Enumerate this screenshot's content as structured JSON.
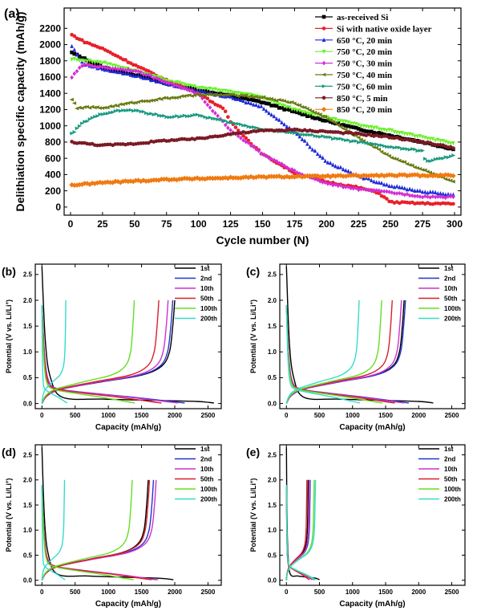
{
  "chart_data": [
    {
      "panel": "(a)",
      "type": "scatter",
      "xlabel": "Cycle number (N)",
      "ylabel": "Delithiation specific capacity (mAh/g)",
      "xlim": [
        -5,
        305
      ],
      "ylim": [
        -100,
        2450
      ],
      "xticks": [
        0,
        25,
        50,
        75,
        100,
        125,
        150,
        175,
        200,
        225,
        250,
        275,
        300
      ],
      "yticks": [
        0,
        200,
        400,
        600,
        800,
        1000,
        1200,
        1400,
        1600,
        1800,
        2000,
        2200
      ],
      "legend_position": "top-right",
      "series": [
        {
          "name": "as-received Si",
          "color": "#000000",
          "marker": "square",
          "points": [
            [
              1,
              1900
            ],
            [
              25,
              1720
            ],
            [
              50,
              1630
            ],
            [
              75,
              1520
            ],
            [
              100,
              1440
            ],
            [
              125,
              1370
            ],
            [
              150,
              1290
            ],
            [
              175,
              1170
            ],
            [
              200,
              1060
            ],
            [
              225,
              960
            ],
            [
              250,
              880
            ],
            [
              275,
              800
            ],
            [
              300,
              710
            ]
          ]
        },
        {
          "name": "Si with native oxide layer",
          "color": "#e8202a",
          "marker": "circle",
          "points": [
            [
              1,
              2120
            ],
            [
              10,
              2040
            ],
            [
              25,
              1950
            ],
            [
              50,
              1750
            ],
            [
              75,
              1560
            ],
            [
              100,
              1400
            ],
            [
              120,
              1200
            ],
            [
              125,
              1050
            ],
            [
              140,
              800
            ],
            [
              150,
              650
            ],
            [
              175,
              420
            ],
            [
              200,
              310
            ],
            [
              225,
              240
            ],
            [
              240,
              180
            ],
            [
              250,
              60
            ],
            [
              275,
              45
            ],
            [
              300,
              40
            ]
          ]
        },
        {
          "name": "650 °C, 20 min",
          "color": "#1f2bd6",
          "marker": "triangle-up",
          "points": [
            [
              1,
              1980
            ],
            [
              10,
              1760
            ],
            [
              25,
              1700
            ],
            [
              50,
              1620
            ],
            [
              75,
              1520
            ],
            [
              100,
              1430
            ],
            [
              125,
              1350
            ],
            [
              150,
              1230
            ],
            [
              160,
              1100
            ],
            [
              175,
              930
            ],
            [
              190,
              700
            ],
            [
              200,
              560
            ],
            [
              225,
              380
            ],
            [
              250,
              260
            ],
            [
              275,
              190
            ],
            [
              300,
              150
            ]
          ]
        },
        {
          "name": "750 °C, 20 min",
          "color": "#6cf02a",
          "marker": "triangle-down",
          "points": [
            [
              1,
              1820
            ],
            [
              25,
              1780
            ],
            [
              50,
              1680
            ],
            [
              75,
              1560
            ],
            [
              100,
              1470
            ],
            [
              125,
              1420
            ],
            [
              150,
              1350
            ],
            [
              175,
              1200
            ],
            [
              200,
              1100
            ],
            [
              225,
              1010
            ],
            [
              250,
              940
            ],
            [
              275,
              860
            ],
            [
              300,
              780
            ]
          ]
        },
        {
          "name": "750 °C, 30 min",
          "color": "#d22ed6",
          "marker": "diamond",
          "points": [
            [
              1,
              1600
            ],
            [
              10,
              1760
            ],
            [
              25,
              1720
            ],
            [
              50,
              1680
            ],
            [
              75,
              1540
            ],
            [
              100,
              1390
            ],
            [
              110,
              1200
            ],
            [
              125,
              950
            ],
            [
              150,
              650
            ],
            [
              175,
              440
            ],
            [
              200,
              290
            ],
            [
              225,
              220
            ],
            [
              250,
              180
            ],
            [
              260,
              160
            ],
            [
              275,
              130
            ],
            [
              300,
              120
            ]
          ]
        },
        {
          "name": "750 °C, 40 min",
          "color": "#6b7a12",
          "marker": "triangle-left",
          "points": [
            [
              1,
              1330
            ],
            [
              5,
              1210
            ],
            [
              10,
              1230
            ],
            [
              25,
              1220
            ],
            [
              50,
              1290
            ],
            [
              75,
              1340
            ],
            [
              100,
              1380
            ],
            [
              125,
              1380
            ],
            [
              150,
              1350
            ],
            [
              175,
              1280
            ],
            [
              200,
              1100
            ],
            [
              220,
              900
            ],
            [
              250,
              620
            ],
            [
              275,
              460
            ],
            [
              300,
              300
            ]
          ]
        },
        {
          "name": "750 °C, 60 min",
          "color": "#1a9a80",
          "marker": "triangle-right",
          "points": [
            [
              1,
              900
            ],
            [
              10,
              1040
            ],
            [
              25,
              1150
            ],
            [
              40,
              1190
            ],
            [
              50,
              1190
            ],
            [
              75,
              1110
            ],
            [
              100,
              1130
            ],
            [
              125,
              1040
            ],
            [
              150,
              960
            ],
            [
              175,
              910
            ],
            [
              200,
              860
            ],
            [
              225,
              800
            ],
            [
              250,
              740
            ],
            [
              275,
              690
            ],
            [
              278,
              560
            ],
            [
              300,
              630
            ]
          ]
        },
        {
          "name": "850 °C, 5 min",
          "color": "#7a1a24",
          "marker": "hexagon",
          "points": [
            [
              1,
              800
            ],
            [
              25,
              760
            ],
            [
              50,
              780
            ],
            [
              75,
              820
            ],
            [
              100,
              840
            ],
            [
              125,
              900
            ],
            [
              150,
              940
            ],
            [
              175,
              950
            ],
            [
              200,
              930
            ],
            [
              225,
              900
            ],
            [
              250,
              860
            ],
            [
              275,
              800
            ],
            [
              300,
              730
            ]
          ]
        },
        {
          "name": "850 °C, 20 min",
          "color": "#f07a10",
          "marker": "star",
          "points": [
            [
              1,
              270
            ],
            [
              25,
              300
            ],
            [
              50,
              320
            ],
            [
              75,
              340
            ],
            [
              100,
              350
            ],
            [
              125,
              360
            ],
            [
              150,
              370
            ],
            [
              175,
              375
            ],
            [
              200,
              380
            ],
            [
              225,
              385
            ],
            [
              250,
              390
            ],
            [
              275,
              390
            ],
            [
              300,
              390
            ]
          ]
        }
      ]
    },
    {
      "panel": "(b)",
      "type": "line",
      "xlabel": "Capacity (mAh/g)",
      "ylabel": "Potential (V vs. Li/Li+)",
      "xlim": [
        -100,
        2700
      ],
      "ylim": [
        -0.1,
        2.7
      ],
      "xticks": [
        0,
        500,
        1000,
        1500,
        2000,
        2500
      ],
      "yticks": [
        0.0,
        0.5,
        1.0,
        1.5,
        2.0,
        2.5
      ],
      "legend_position": "top-right",
      "series": [
        {
          "name": "1st",
          "color": "#000000",
          "discharge_end": 2590,
          "charge_end": 2000
        },
        {
          "name": "2nd",
          "color": "#2233cc",
          "discharge_end": 2150,
          "charge_end": 1970
        },
        {
          "name": "10th",
          "color": "#cc33cc",
          "discharge_end": 2050,
          "charge_end": 1900
        },
        {
          "name": "50th",
          "color": "#d8202c",
          "discharge_end": 1800,
          "charge_end": 1760
        },
        {
          "name": "100th",
          "color": "#66dd22",
          "discharge_end": 1400,
          "charge_end": 1390
        },
        {
          "name": "200th",
          "color": "#33ddcc",
          "discharge_end": 380,
          "charge_end": 360
        }
      ]
    },
    {
      "panel": "(c)",
      "type": "line",
      "xlabel": "Capacity (mAh/g)",
      "ylabel": "Potential (V vs. Li/Li+)",
      "xlim": [
        -100,
        2700
      ],
      "ylim": [
        -0.1,
        2.7
      ],
      "xticks": [
        0,
        500,
        1000,
        1500,
        2000,
        2500
      ],
      "yticks": [
        0.0,
        0.5,
        1.0,
        1.5,
        2.0,
        2.5
      ],
      "legend_position": "top-right",
      "series": [
        {
          "name": "1st",
          "color": "#000000",
          "discharge_end": 2220,
          "charge_end": 1780
        },
        {
          "name": "2nd",
          "color": "#2233cc",
          "discharge_end": 1850,
          "charge_end": 1800
        },
        {
          "name": "10th",
          "color": "#cc33cc",
          "discharge_end": 1780,
          "charge_end": 1740
        },
        {
          "name": "50th",
          "color": "#d8202c",
          "discharge_end": 1640,
          "charge_end": 1600
        },
        {
          "name": "100th",
          "color": "#66dd22",
          "discharge_end": 1450,
          "charge_end": 1440
        },
        {
          "name": "200th",
          "color": "#33ddcc",
          "discharge_end": 1110,
          "charge_end": 1100
        }
      ]
    },
    {
      "panel": "(d)",
      "type": "line",
      "xlabel": "Capacity (mAh/g)",
      "ylabel": "Potential (V vs. Li/Li+)",
      "xlim": [
        -100,
        2700
      ],
      "ylim": [
        -0.1,
        2.7
      ],
      "xticks": [
        0,
        500,
        1000,
        1500,
        2000,
        2500
      ],
      "yticks": [
        0.0,
        0.5,
        1.0,
        1.5,
        2.0,
        2.5
      ],
      "legend_position": "top-right",
      "series": [
        {
          "name": "1st",
          "color": "#000000",
          "discharge_end": 1980,
          "charge_end": 1600
        },
        {
          "name": "2nd",
          "color": "#2233cc",
          "discharge_end": 1720,
          "charge_end": 1680
        },
        {
          "name": "10th",
          "color": "#cc33cc",
          "discharge_end": 1750,
          "charge_end": 1720
        },
        {
          "name": "50th",
          "color": "#d8202c",
          "discharge_end": 1650,
          "charge_end": 1620
        },
        {
          "name": "100th",
          "color": "#66dd22",
          "discharge_end": 1380,
          "charge_end": 1360
        },
        {
          "name": "200th",
          "color": "#33ddcc",
          "discharge_end": 350,
          "charge_end": 340
        }
      ]
    },
    {
      "panel": "(e)",
      "type": "line",
      "xlabel": "Capacity (mAh/g)",
      "ylabel": "Potential (V vs. Li/Li+)",
      "xlim": [
        -100,
        2700
      ],
      "ylim": [
        -0.1,
        2.7
      ],
      "xticks": [
        0,
        500,
        1000,
        1500,
        2000,
        2500
      ],
      "yticks": [
        0.0,
        0.5,
        1.0,
        1.5,
        2.0,
        2.5
      ],
      "legend_position": "top-right",
      "series": [
        {
          "name": "1st",
          "color": "#000000",
          "discharge_end": 500,
          "charge_end": 330
        },
        {
          "name": "2nd",
          "color": "#2233cc",
          "discharge_end": 420,
          "charge_end": 360
        },
        {
          "name": "10th",
          "color": "#cc33cc",
          "discharge_end": 390,
          "charge_end": 350
        },
        {
          "name": "50th",
          "color": "#d8202c",
          "discharge_end": 350,
          "charge_end": 310
        },
        {
          "name": "100th",
          "color": "#66dd22",
          "discharge_end": 430,
          "charge_end": 420
        },
        {
          "name": "200th",
          "color": "#33ddcc",
          "discharge_end": 450,
          "charge_end": 440
        }
      ]
    }
  ]
}
